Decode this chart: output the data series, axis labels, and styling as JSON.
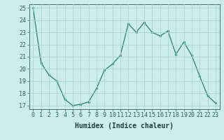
{
  "x": [
    0,
    1,
    2,
    3,
    4,
    5,
    6,
    7,
    8,
    9,
    10,
    11,
    12,
    13,
    14,
    15,
    16,
    17,
    18,
    19,
    20,
    21,
    22,
    23
  ],
  "y": [
    25,
    20.5,
    19.5,
    19.0,
    17.5,
    17.0,
    17.1,
    17.3,
    18.4,
    19.9,
    20.4,
    21.1,
    23.7,
    23.0,
    23.8,
    23.0,
    22.7,
    23.1,
    21.2,
    22.2,
    21.1,
    19.4,
    17.8,
    17.2
  ],
  "xlabel": "Humidex (Indice chaleur)",
  "ylabel": "",
  "xlim": [
    -0.5,
    23.5
  ],
  "ylim": [
    16.7,
    25.3
  ],
  "yticks": [
    17,
    18,
    19,
    20,
    21,
    22,
    23,
    24,
    25
  ],
  "xticks": [
    0,
    1,
    2,
    3,
    4,
    5,
    6,
    7,
    8,
    9,
    10,
    11,
    12,
    13,
    14,
    15,
    16,
    17,
    18,
    19,
    20,
    21,
    22,
    23
  ],
  "line_color": "#2d7d6e",
  "marker_color": "#2d7d6e",
  "bg_color": "#cceee8",
  "grid_color": "#aad4ce",
  "tick_label_color": "#2d5f5a",
  "xlabel_color": "#1a3f3a",
  "font_size": 6.0,
  "xlabel_fontsize": 7.0
}
